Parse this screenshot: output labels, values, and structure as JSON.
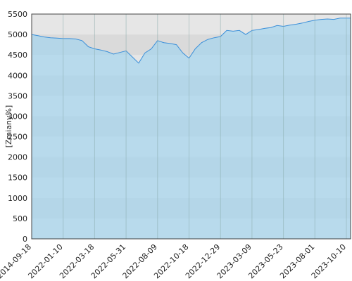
{
  "chart_data": {
    "type": "area",
    "y_label": "[Zmiany%]",
    "categories": [
      "2014-09-18",
      null,
      null,
      null,
      null,
      "2022-01-10",
      null,
      null,
      null,
      null,
      "2022-03-18",
      null,
      null,
      null,
      null,
      "2022-05-31",
      null,
      null,
      null,
      null,
      "2022-08-09",
      null,
      null,
      null,
      null,
      "2022-10-18",
      null,
      null,
      null,
      null,
      "2022-12-29",
      null,
      null,
      null,
      null,
      "2023-03-09",
      null,
      null,
      null,
      null,
      "2023-05-23",
      null,
      null,
      null,
      null,
      "2023-08-01",
      null,
      null,
      null,
      null,
      "2023-10-10"
    ],
    "values": [
      5000,
      4970,
      4940,
      4920,
      4910,
      4900,
      4900,
      4890,
      4850,
      4700,
      4650,
      4620,
      4580,
      4520,
      4560,
      4600,
      4450,
      4300,
      4550,
      4650,
      4850,
      4800,
      4780,
      4750,
      4550,
      4420,
      4650,
      4800,
      4880,
      4920,
      4950,
      5100,
      5080,
      5100,
      5000,
      5100,
      5120,
      5150,
      5170,
      5220,
      5200,
      5230,
      5250,
      5280,
      5320,
      5350,
      5370,
      5380,
      5370,
      5400,
      5400
    ],
    "color": "#3a8fd9",
    "ylim": [
      0,
      5500
    ],
    "yticks": [
      0,
      500,
      1000,
      1500,
      2000,
      2500,
      3000,
      3500,
      4000,
      4500,
      5000,
      5500
    ],
    "grid": true
  }
}
